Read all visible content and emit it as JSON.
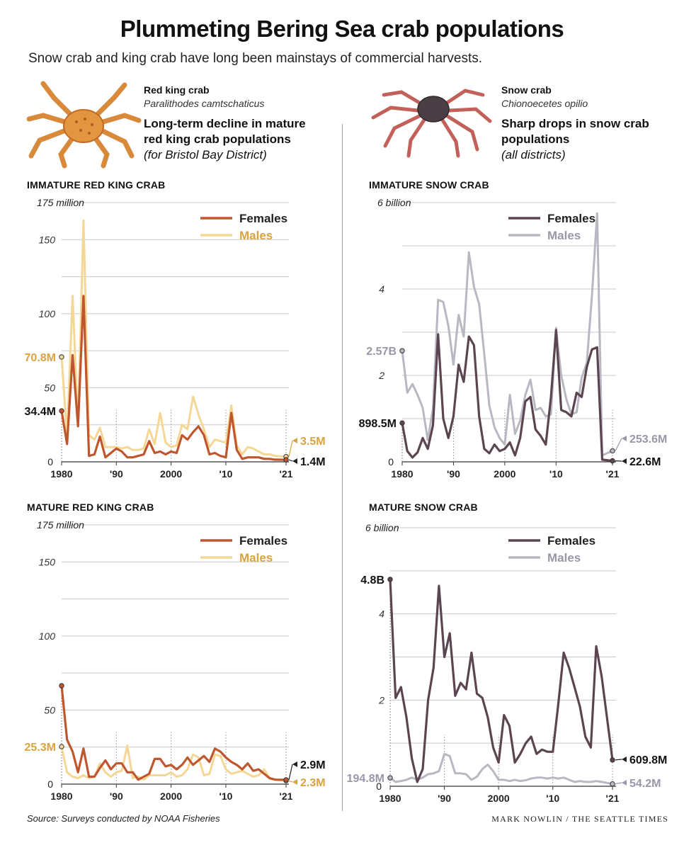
{
  "title": "Plummeting Bering Sea crab populations",
  "subtitle": "Snow crab and king crab have long been mainstays of commercial harvests.",
  "red_king": {
    "name": "Red king crab",
    "sci": "Paralithodes camtschaticus",
    "headline": [
      "Long-term decline in mature",
      "red king crab populations"
    ],
    "paren": "(for Bristol Bay District)"
  },
  "snow": {
    "name": "Snow crab",
    "sci": "Chionoecetes opilio",
    "headline": [
      "Sharp drops in snow crab",
      "populations"
    ],
    "paren": "(all districts)"
  },
  "source": "Source: Surveys conducted by NOAA Fisheries",
  "credit": "MARK NOWLIN / THE SEATTLE TIMES",
  "colors": {
    "red_female": "#c0562e",
    "red_male": "#f5d795",
    "red_male_label": "#d9a440",
    "snow_female": "#5b4550",
    "snow_male": "#b9b7c2",
    "snow_male_label": "#9a97a8",
    "grid": "#c8c8c8"
  },
  "chart_data": [
    {
      "id": "imm_rkc",
      "panel_title": "IMMATURE RED KING CRAB",
      "type": "line",
      "ytop_label": "175 million",
      "ylim": [
        0,
        175
      ],
      "yticks": [
        50,
        100,
        150
      ],
      "xlim": [
        1980,
        2021
      ],
      "xticks": [
        1980,
        1990,
        2000,
        2010,
        2021
      ],
      "xtick_labels": [
        "1980",
        "'90",
        "2000",
        "'10",
        "'21"
      ],
      "x": [
        1980,
        1981,
        1982,
        1983,
        1984,
        1985,
        1986,
        1987,
        1988,
        1989,
        1990,
        1991,
        1992,
        1993,
        1994,
        1995,
        1996,
        1997,
        1998,
        1999,
        2000,
        2001,
        2002,
        2003,
        2004,
        2005,
        2006,
        2007,
        2008,
        2009,
        2010,
        2011,
        2012,
        2013,
        2014,
        2015,
        2016,
        2017,
        2018,
        2019,
        2021
      ],
      "series": [
        {
          "name": "Females",
          "color_key": "red_female",
          "values": [
            34.4,
            12,
            72,
            24,
            112,
            4,
            5,
            17,
            3,
            6,
            9,
            7,
            3,
            3,
            4,
            5,
            14,
            6,
            7,
            5,
            7,
            6,
            18,
            15,
            20,
            24,
            18,
            5,
            6,
            4,
            3,
            33,
            8,
            2,
            3,
            3,
            3,
            2,
            2,
            1.5,
            1.4
          ],
          "start_label": "34.4M",
          "end_label": "1.4M"
        },
        {
          "name": "Males",
          "color_key": "red_male",
          "values": [
            70.8,
            17,
            112,
            25,
            163,
            18,
            15,
            23,
            10,
            10,
            10,
            9,
            10,
            8,
            8,
            9,
            22,
            12,
            33,
            13,
            10,
            11,
            25,
            22,
            44,
            32,
            22,
            10,
            15,
            14,
            13,
            38,
            11,
            5,
            10,
            9,
            7,
            5,
            5,
            4,
            3.5
          ],
          "start_label": "70.8M",
          "end_label": "3.5M"
        }
      ]
    },
    {
      "id": "mat_rkc",
      "panel_title": "MATURE RED KING CRAB",
      "type": "line",
      "ytop_label": "175  million",
      "ylim": [
        0,
        175
      ],
      "yticks": [
        50,
        100,
        150
      ],
      "xlim": [
        1980,
        2021
      ],
      "xticks": [
        1980,
        1990,
        2000,
        2010,
        2021
      ],
      "xtick_labels": [
        "1980",
        "'90",
        "2000",
        "'10",
        "'21"
      ],
      "x": [
        1980,
        1981,
        1982,
        1983,
        1984,
        1985,
        1986,
        1987,
        1988,
        1989,
        1990,
        1991,
        1992,
        1993,
        1994,
        1995,
        1996,
        1997,
        1998,
        1999,
        2000,
        2001,
        2002,
        2003,
        2004,
        2005,
        2006,
        2007,
        2008,
        2009,
        2010,
        2011,
        2012,
        2013,
        2014,
        2015,
        2016,
        2017,
        2018,
        2019,
        2021
      ],
      "series": [
        {
          "name": "Females",
          "color_key": "red_female",
          "values": [
            66.4,
            30,
            22,
            8,
            24,
            5,
            5,
            11,
            16,
            10,
            14,
            14,
            8,
            8,
            3,
            5,
            7,
            17,
            17,
            12,
            13,
            10,
            13,
            18,
            13,
            16,
            19,
            15,
            24,
            22,
            18,
            15,
            13,
            10,
            14,
            9,
            10,
            7,
            4,
            3,
            2.9
          ],
          "start_label": "",
          "end_label": "2.9M"
        },
        {
          "name": "Males",
          "color_key": "red_male",
          "values": [
            25.3,
            8,
            5,
            4,
            6,
            4,
            5,
            14,
            8,
            5,
            8,
            9,
            26,
            4,
            5,
            3,
            6,
            6,
            6,
            6,
            8,
            5,
            6,
            10,
            20,
            18,
            6,
            7,
            20,
            19,
            10,
            7,
            8,
            9,
            7,
            5,
            6,
            10,
            4,
            3,
            2.3
          ],
          "start_label": "25.3M",
          "end_label": "2.3M"
        }
      ]
    },
    {
      "id": "imm_snow",
      "panel_title": "IMMATURE SNOW CRAB",
      "type": "line",
      "ytop_label": "6 billion",
      "ylim": [
        0,
        6
      ],
      "yticks": [
        2,
        4
      ],
      "ygrid": [
        1,
        2,
        3,
        4,
        5,
        6
      ],
      "xlim": [
        1980,
        2021
      ],
      "xticks": [
        1980,
        1990,
        2000,
        2010,
        2021
      ],
      "xtick_labels": [
        "1980",
        "'90",
        "2000",
        "'10",
        "'21"
      ],
      "x": [
        1980,
        1981,
        1982,
        1983,
        1984,
        1985,
        1986,
        1987,
        1988,
        1989,
        1990,
        1991,
        1992,
        1993,
        1994,
        1995,
        1996,
        1997,
        1998,
        1999,
        2000,
        2001,
        2002,
        2003,
        2004,
        2005,
        2006,
        2007,
        2008,
        2009,
        2010,
        2011,
        2012,
        2013,
        2014,
        2015,
        2016,
        2017,
        2018,
        2019,
        2021
      ],
      "series": [
        {
          "name": "Females",
          "color_key": "snow_female",
          "values": [
            0.8985,
            0.25,
            0.1,
            0.22,
            0.55,
            0.3,
            0.85,
            2.95,
            1.0,
            0.55,
            1.05,
            2.25,
            1.85,
            2.9,
            2.7,
            1.05,
            0.3,
            0.2,
            0.4,
            0.25,
            0.3,
            0.45,
            0.15,
            0.55,
            1.4,
            1.5,
            0.75,
            0.6,
            0.4,
            1.5,
            3.05,
            1.2,
            1.15,
            1.05,
            1.6,
            1.5,
            2.2,
            2.6,
            2.65,
            0.05,
            0.0226
          ],
          "start_label": "898.5M",
          "end_label": "22.6M"
        },
        {
          "name": "Males",
          "color_key": "snow_male",
          "values": [
            2.57,
            1.6,
            1.8,
            1.55,
            1.25,
            0.5,
            1.25,
            3.75,
            3.7,
            3.15,
            2.25,
            3.4,
            2.9,
            4.85,
            4.05,
            3.65,
            2.5,
            1.3,
            0.8,
            0.55,
            0.4,
            1.55,
            0.65,
            0.95,
            1.55,
            1.9,
            1.2,
            1.25,
            1.05,
            1.1,
            3.1,
            2.0,
            1.45,
            1.1,
            1.15,
            1.95,
            2.3,
            3.85,
            5.75,
            0.15,
            0.2536
          ],
          "start_label": "2.57B",
          "end_label": "253.6M"
        }
      ]
    },
    {
      "id": "mat_snow",
      "panel_title": "MATURE SNOW CRAB",
      "type": "line",
      "ytop_label": "6 billion",
      "ylim": [
        0,
        6
      ],
      "yticks": [
        2,
        4
      ],
      "ygrid": [
        1,
        2,
        3,
        4,
        5,
        6
      ],
      "xlim": [
        1980,
        2021
      ],
      "xticks": [
        1980,
        1990,
        2000,
        2010,
        2021
      ],
      "xtick_labels": [
        "1980",
        "'90",
        "2000",
        "'10",
        "'21"
      ],
      "x": [
        1980,
        1981,
        1982,
        1983,
        1984,
        1985,
        1986,
        1987,
        1988,
        1989,
        1990,
        1991,
        1992,
        1993,
        1994,
        1995,
        1996,
        1997,
        1998,
        1999,
        2000,
        2001,
        2002,
        2003,
        2004,
        2005,
        2006,
        2007,
        2008,
        2009,
        2010,
        2011,
        2012,
        2013,
        2014,
        2015,
        2016,
        2017,
        2018,
        2019,
        2021
      ],
      "series": [
        {
          "name": "Females",
          "color_key": "snow_female",
          "values": [
            4.8,
            2.05,
            2.3,
            1.6,
            0.65,
            0.1,
            0.4,
            2.0,
            2.75,
            4.65,
            3.0,
            3.55,
            2.1,
            2.4,
            2.25,
            3.1,
            2.15,
            2.05,
            1.6,
            0.9,
            0.55,
            1.65,
            1.4,
            0.55,
            0.75,
            1.0,
            1.15,
            0.75,
            0.85,
            0.8,
            0.8,
            1.9,
            3.1,
            2.75,
            2.3,
            1.85,
            1.15,
            0.9,
            3.25,
            2.55,
            0.6098
          ],
          "start_label": "4.8B",
          "end_label": "609.8M"
        },
        {
          "name": "Males",
          "color_key": "snow_male",
          "values": [
            0.1948,
            0.1,
            0.12,
            0.15,
            0.2,
            0.15,
            0.2,
            0.28,
            0.3,
            0.35,
            0.75,
            0.7,
            0.3,
            0.3,
            0.28,
            0.15,
            0.22,
            0.4,
            0.5,
            0.35,
            0.15,
            0.15,
            0.12,
            0.15,
            0.12,
            0.14,
            0.18,
            0.2,
            0.2,
            0.18,
            0.2,
            0.18,
            0.2,
            0.15,
            0.1,
            0.12,
            0.1,
            0.1,
            0.12,
            0.1,
            0.0542
          ],
          "start_label": "194.8M",
          "end_label": "54.2M"
        }
      ]
    }
  ]
}
